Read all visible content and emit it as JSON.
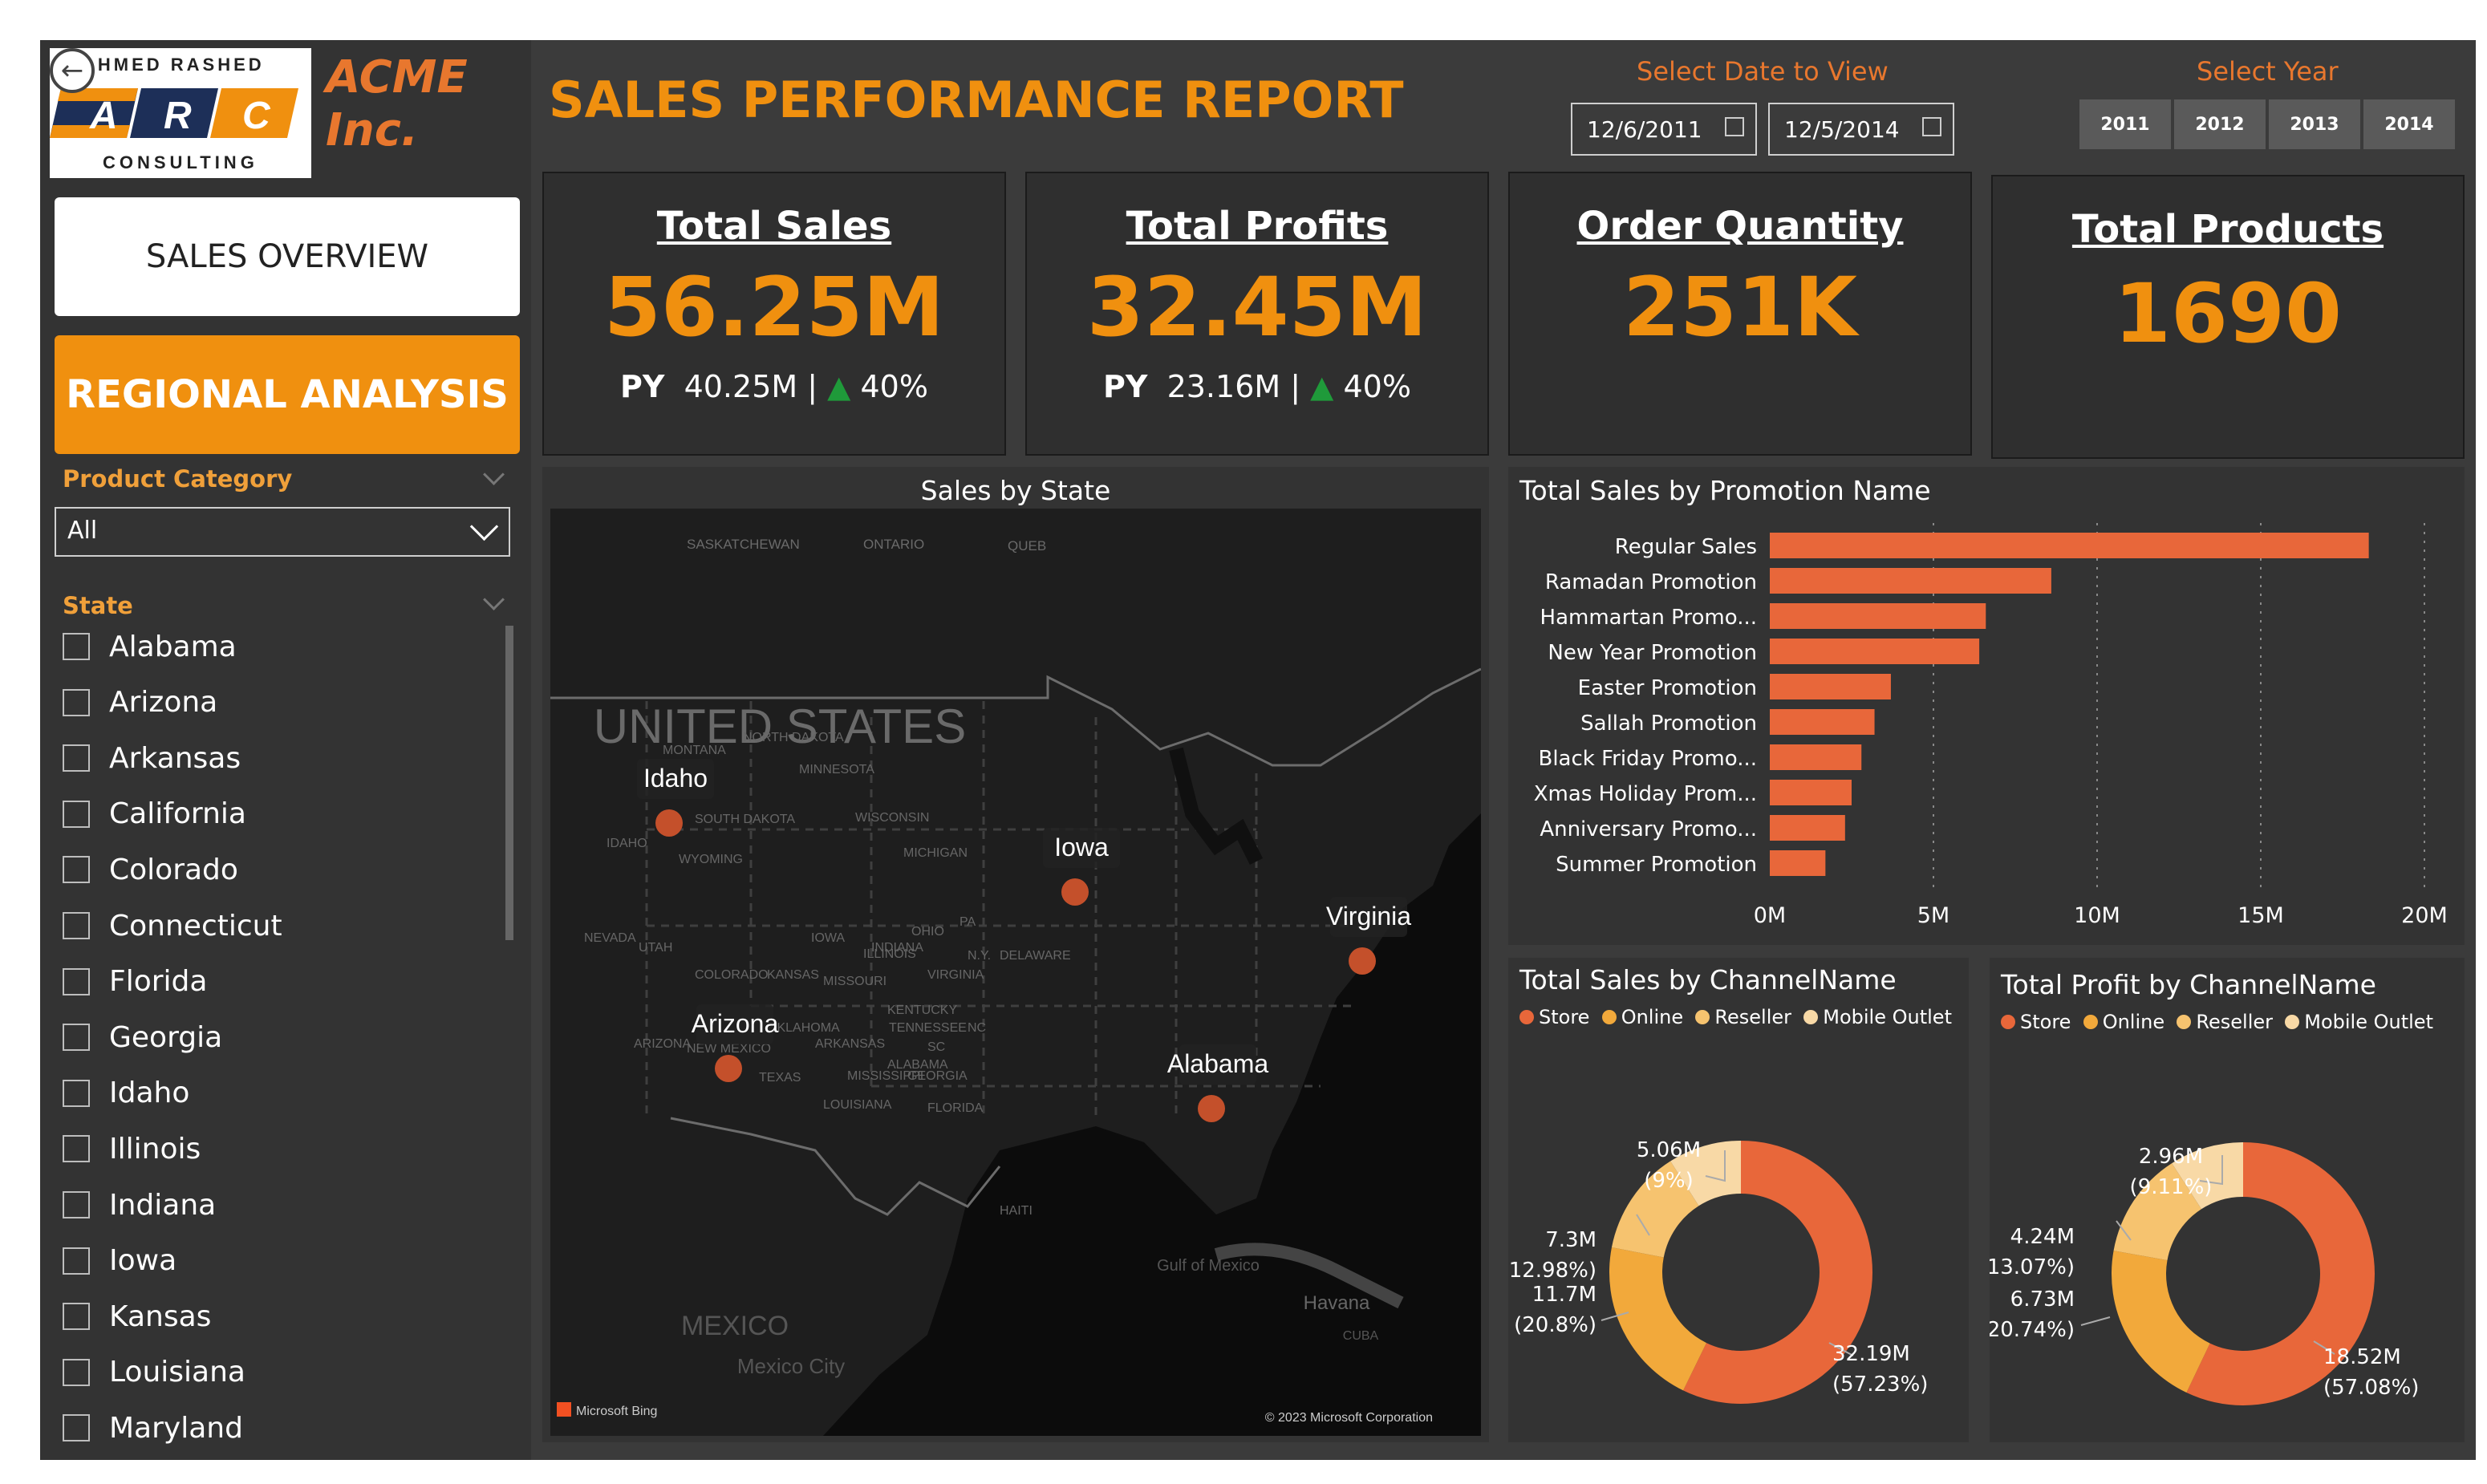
{
  "brand": {
    "logo_top": "AHMED RASHED",
    "logo_letters": [
      "A",
      "R",
      "C"
    ],
    "logo_bottom": "CONSULTING",
    "company_line1": "ACME",
    "company_line2": "Inc."
  },
  "nav": {
    "sales_overview": "SALES OVERVIEW",
    "regional_analysis": "REGIONAL ANALYSIS"
  },
  "filters": {
    "category_title": "Product Category",
    "category_value": "All",
    "state_title": "State",
    "states": [
      "Alabama",
      "Arizona",
      "Arkansas",
      "California",
      "Colorado",
      "Connecticut",
      "Florida",
      "Georgia",
      "Idaho",
      "Illinois",
      "Indiana",
      "Iowa",
      "Kansas",
      "Louisiana",
      "Maryland"
    ]
  },
  "header": {
    "title": "SALES PERFORMANCE REPORT",
    "date_label": "Select Date to View",
    "date_start": "12/6/2011",
    "date_end": "12/5/2014",
    "year_label": "Select Year",
    "years": [
      "2011",
      "2012",
      "2013",
      "2014"
    ]
  },
  "kpis": [
    {
      "title": "Total Sales",
      "value": "56.25M",
      "py_label": "PY",
      "py_value": "40.25M",
      "sep": "|",
      "delta": "40%"
    },
    {
      "title": "Total Profits",
      "value": "32.45M",
      "py_label": "PY",
      "py_value": "23.16M",
      "sep": "|",
      "delta": "40%"
    },
    {
      "title": "Order Quantity",
      "value": "251K"
    },
    {
      "title": "Total Products",
      "value": "1690"
    }
  ],
  "map": {
    "title": "Sales by State",
    "country_label": "UNITED STATES",
    "mexico_label": "MEXICO",
    "mexico_city": "Mexico City",
    "gulf": "Gulf of Mexico",
    "havana": "Havana",
    "cuba": "CUBA",
    "canada_labels": [
      "SASKATCHEWAN",
      "ONTARIO",
      "QUEB"
    ],
    "state_labels": [
      "MONTANA",
      "NORTH DAKOTA",
      "MINNESOTA",
      "WISCONSIN",
      "MICHIGAN",
      "SOUTH DAKOTA",
      "WYOMING",
      "IDAHO",
      "NEVADA",
      "UTAH",
      "COLORADO",
      "KANSAS",
      "MISSOURI",
      "ILLINOIS",
      "INDIANA",
      "OHIO",
      "PA",
      "N.Y.",
      "DELAWARE",
      "KENTUCKY",
      "TENNESSEE",
      "NC",
      "SC",
      "OKLAHOMA",
      "ARKANSAS",
      "MISSISSIPPI",
      "LOUISIANA",
      "GEORGIA",
      "FLORIDA",
      "TEXAS",
      "NEW MEXICO",
      "ARIZONA",
      "VIRGINIA",
      "IOWA",
      "ALABAMA",
      "HAITI"
    ],
    "bubbles": [
      "Idaho",
      "Iowa",
      "Virginia",
      "Arizona",
      "Alabama"
    ],
    "bing": "Microsoft Bing",
    "copyright": "© 2023 Microsoft Corporation"
  },
  "promo_chart_data": {
    "type": "bar",
    "title": "Total Sales by Promotion Name",
    "categories": [
      "Regular Sales",
      "Ramadan Promotion",
      "Hammartan Promo...",
      "New Year Promotion",
      "Easter Promotion",
      "Sallah Promotion",
      "Black Friday Promo...",
      "Xmas Holiday Prom...",
      "Anniversary Promo...",
      "Summer Promotion"
    ],
    "values": [
      18.3,
      8.6,
      6.6,
      6.4,
      3.7,
      3.2,
      2.8,
      2.5,
      2.3,
      1.7
    ],
    "xlim": [
      0,
      20
    ],
    "ticks": [
      "0M",
      "5M",
      "10M",
      "15M",
      "20M"
    ],
    "color": "#e8673a"
  },
  "donut_sales": {
    "type": "pie",
    "title": "Total Sales by ChannelName",
    "legend": [
      "Store",
      "Online",
      "Reseller",
      "Mobile Outlet"
    ],
    "values": [
      57.23,
      20.8,
      12.98,
      9.0
    ],
    "labels": [
      [
        "32.19M",
        "(57.23%)"
      ],
      [
        "11.7M",
        "(20.8%)"
      ],
      [
        "7.3M",
        "(12.98%)"
      ],
      [
        "5.06M",
        "(9%)"
      ]
    ]
  },
  "donut_profit": {
    "type": "pie",
    "title": "Total Profit by ChannelName",
    "legend": [
      "Store",
      "Online",
      "Reseller",
      "Mobile Outlet"
    ],
    "values": [
      57.08,
      20.74,
      13.07,
      9.11
    ],
    "labels": [
      [
        "18.52M",
        "(57.08%)"
      ],
      [
        "6.73M",
        "(20.74%)"
      ],
      [
        "4.24M",
        "(13.07%)"
      ],
      [
        "2.96M",
        "(9.11%)"
      ]
    ]
  },
  "colors": {
    "store": "#e8673a",
    "online": "#f2a93b",
    "reseller": "#f6c36f",
    "mobile": "#f8d9a6",
    "accent": "#f0900f",
    "up": "#1f9a3a"
  }
}
